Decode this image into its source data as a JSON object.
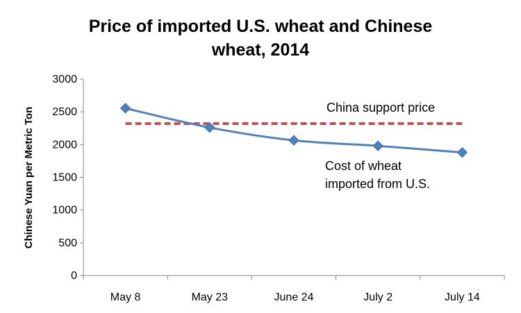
{
  "chart_data": {
    "type": "line",
    "title_lines": [
      "Price of imported U.S. wheat and Chinese",
      "wheat, 2014"
    ],
    "ylabel": "Chinese Yuan per Metric Ton",
    "xlabel": "",
    "categories": [
      "May 8",
      "May 23",
      "June 24",
      "July 2",
      "July 14"
    ],
    "ylim": [
      0,
      3000
    ],
    "yticks": [
      0,
      500,
      1000,
      1500,
      2000,
      2500,
      3000
    ],
    "grid": false,
    "legend": "none",
    "series": [
      {
        "name": "Cost of wheat imported from U.S.",
        "name_lines": [
          "Cost of wheat",
          "imported from U.S."
        ],
        "values": [
          2555,
          2260,
          2065,
          1980,
          1880
        ],
        "color": "#4f81bd",
        "marker": "diamond",
        "style": "solid"
      },
      {
        "name": "China support price",
        "values": [
          2320,
          2320,
          2320,
          2320,
          2320
        ],
        "color": "#c0504d",
        "marker": "none",
        "style": "dashed"
      }
    ]
  }
}
